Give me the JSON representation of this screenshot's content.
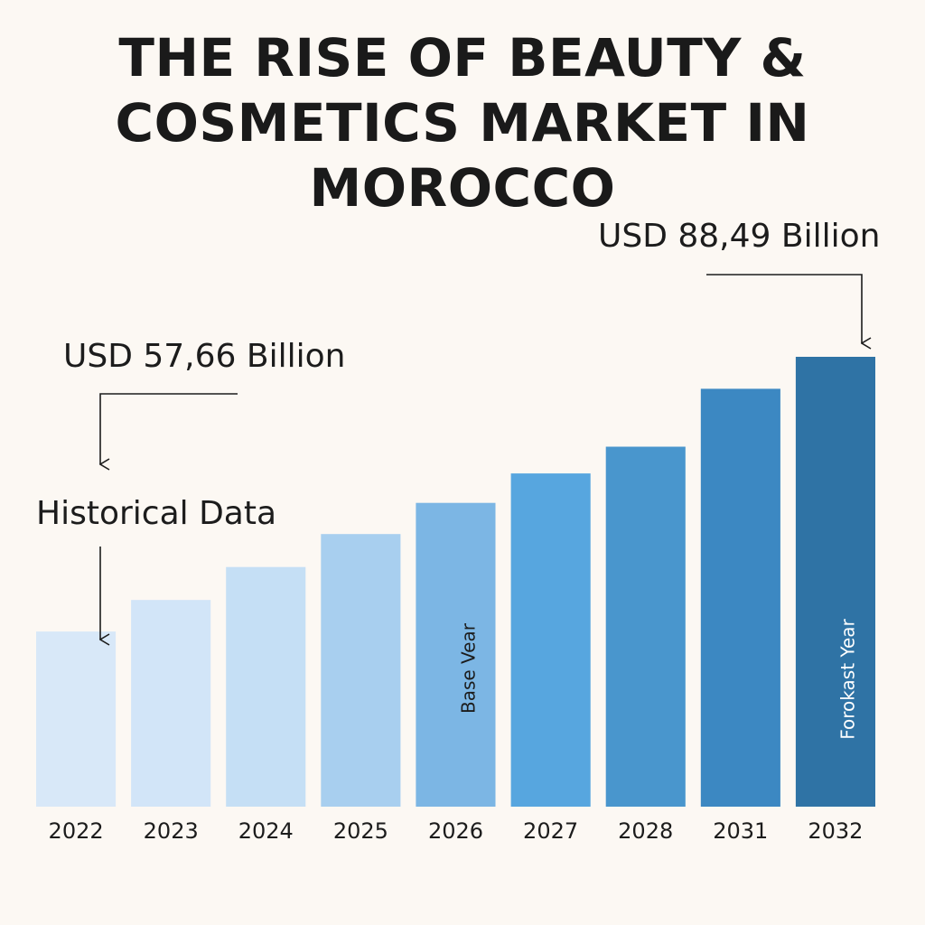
{
  "chart_data": {
    "type": "bar",
    "title": "THE RISE OF BEAUTY & COSMETICS MARKET IN MOROCCO",
    "categories": [
      "2022",
      "2023",
      "2024",
      "2025",
      "2026",
      "2027",
      "2028",
      "2031",
      "2032"
    ],
    "values": [
      57.66,
      61.2,
      64.9,
      68.6,
      72.1,
      75.4,
      78.4,
      84.9,
      88.49
    ],
    "ylim": [
      38,
      88.49
    ],
    "xlabel": "",
    "ylabel": "",
    "grid": false,
    "bar_colors": [
      "#d8e8f8",
      "#d2e5f8",
      "#c5dff5",
      "#a8cfef",
      "#7cb6e4",
      "#57a6df",
      "#4996cd",
      "#3c88c2",
      "#2f73a5"
    ],
    "bar_labels": [
      {
        "category": "2026",
        "text": "Base Vear",
        "color": "#1c1c1c"
      },
      {
        "category": "2032",
        "text": "Forokast Year",
        "color": "#ffffff"
      }
    ],
    "annotations": {
      "start_value": "USD 57,66 Billion",
      "end_value": "USD 88,49 Billion",
      "historical": "Historical Data"
    }
  }
}
